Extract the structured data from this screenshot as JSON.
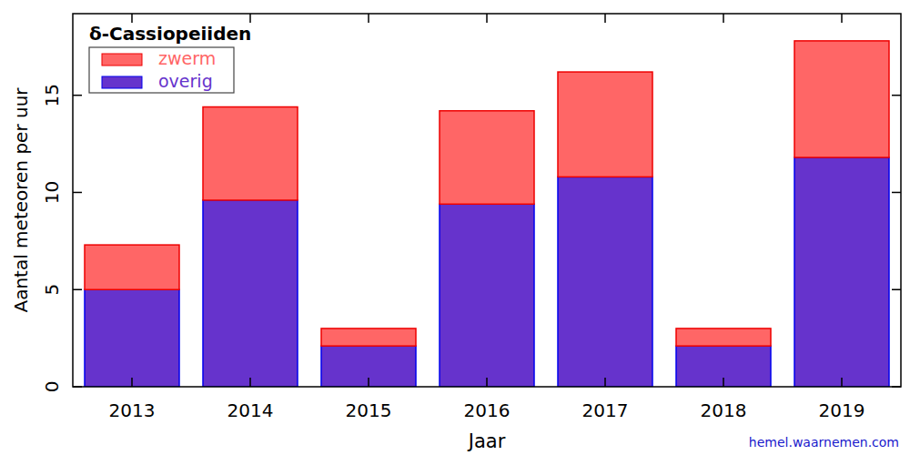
{
  "chart_data": {
    "type": "bar",
    "title": "δ-Cassiopeiiden",
    "x_label": "Jaar",
    "y_label": "Aantal meteoren per uur",
    "annotation": "hemel.waarnemen.com",
    "categories": [
      "2013",
      "2014",
      "2015",
      "2016",
      "2017",
      "2018",
      "2019"
    ],
    "series": [
      {
        "name": "overig",
        "color": "#6633cc",
        "values": [
          5.0,
          9.6,
          2.1,
          9.4,
          10.8,
          2.1,
          11.8
        ]
      },
      {
        "name": "zwerm",
        "color": "#ff6666",
        "values": [
          2.3,
          4.8,
          0.9,
          4.8,
          5.4,
          0.9,
          6.0
        ]
      }
    ],
    "stacked": true,
    "legend": "upper left",
    "ylim": [
      0,
      19.2
    ],
    "yticks": [
      0,
      5,
      10,
      15
    ]
  }
}
